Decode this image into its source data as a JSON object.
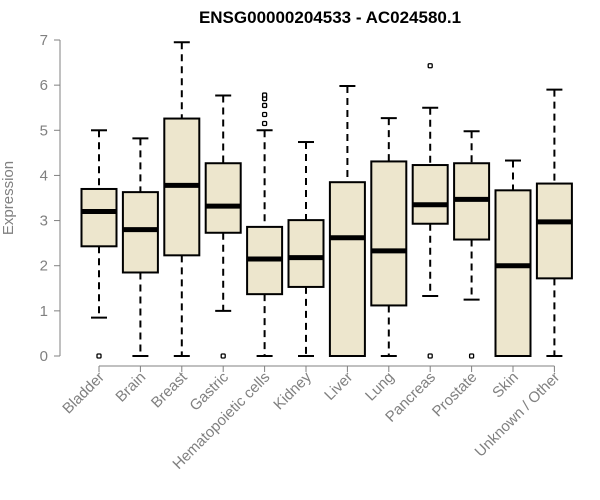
{
  "chart_data": {
    "type": "boxplot",
    "title": "ENSG00000204533 - AC024580.1",
    "xlabel": "",
    "ylabel": "Expression",
    "ylim": [
      0,
      7
    ],
    "yticks": [
      0,
      1,
      2,
      3,
      4,
      5,
      6,
      7
    ],
    "box_color": "#ede6cd",
    "categories": [
      "Bladder",
      "Brain",
      "Breast",
      "Gastric",
      "Hematopoietic cells",
      "Kidney",
      "Liver",
      "Lung",
      "Pancreas",
      "Prostate",
      "Skin",
      "Unknown / Other"
    ],
    "series": [
      {
        "name": "Bladder",
        "whisker_low": 0.85,
        "q1": 2.43,
        "median": 3.2,
        "q3": 3.7,
        "whisker_high": 5.0,
        "outliers": [
          0
        ]
      },
      {
        "name": "Brain",
        "whisker_low": 0,
        "q1": 1.85,
        "median": 2.8,
        "q3": 3.63,
        "whisker_high": 4.82,
        "outliers": []
      },
      {
        "name": "Breast",
        "whisker_low": 0,
        "q1": 2.23,
        "median": 3.78,
        "q3": 5.26,
        "whisker_high": 6.95,
        "outliers": []
      },
      {
        "name": "Gastric",
        "whisker_low": 1.0,
        "q1": 2.73,
        "median": 3.32,
        "q3": 4.27,
        "whisker_high": 5.77,
        "outliers": [
          0
        ]
      },
      {
        "name": "Hematopoietic cells",
        "whisker_low": 0,
        "q1": 1.37,
        "median": 2.15,
        "q3": 2.86,
        "whisker_high": 5.0,
        "outliers": [
          5.15,
          5.35,
          5.55,
          5.7,
          5.78
        ]
      },
      {
        "name": "Kidney",
        "whisker_low": 0,
        "q1": 1.53,
        "median": 2.18,
        "q3": 3.01,
        "whisker_high": 4.74,
        "outliers": []
      },
      {
        "name": "Liver",
        "whisker_low": 0,
        "q1": 0,
        "median": 2.62,
        "q3": 3.85,
        "whisker_high": 5.98,
        "outliers": []
      },
      {
        "name": "Lung",
        "whisker_low": 0,
        "q1": 1.12,
        "median": 2.33,
        "q3": 4.31,
        "whisker_high": 5.27,
        "outliers": []
      },
      {
        "name": "Pancreas",
        "whisker_low": 1.33,
        "q1": 2.93,
        "median": 3.35,
        "q3": 4.23,
        "whisker_high": 5.5,
        "outliers": [
          6.43,
          0
        ]
      },
      {
        "name": "Prostate",
        "whisker_low": 1.25,
        "q1": 2.58,
        "median": 3.47,
        "q3": 4.27,
        "whisker_high": 4.98,
        "outliers": [
          0
        ]
      },
      {
        "name": "Skin",
        "whisker_low": 0,
        "q1": 0,
        "median": 2.0,
        "q3": 3.67,
        "whisker_high": 4.33,
        "outliers": []
      },
      {
        "name": "Unknown / Other",
        "whisker_low": 0,
        "q1": 1.72,
        "median": 2.97,
        "q3": 3.82,
        "whisker_high": 5.9,
        "outliers": []
      }
    ]
  }
}
